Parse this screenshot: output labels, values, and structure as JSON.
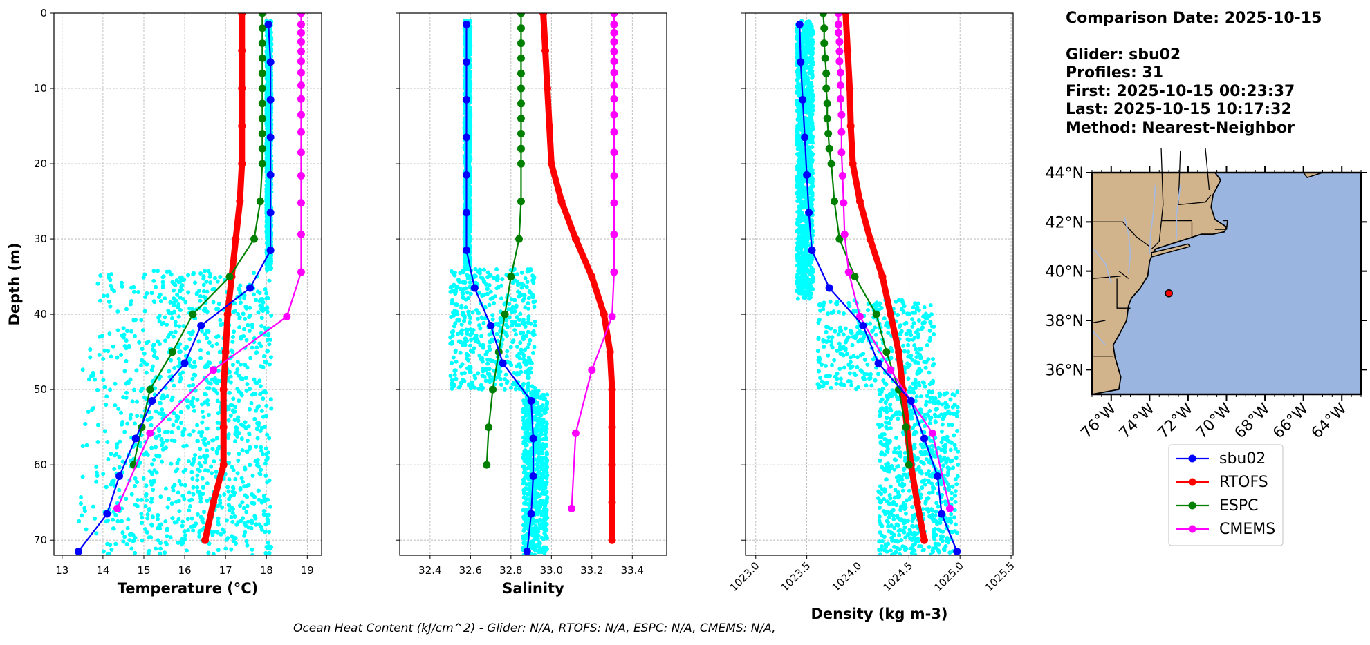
{
  "info": {
    "comparison_date": "Comparison Date: 2025-10-15",
    "glider": "Glider: sbu02",
    "profiles": "Profiles: 31",
    "first": "First: 2025-10-15 00:23:37",
    "last": "Last: 2025-10-15 10:17:32",
    "method": "Method: Nearest-Neighbor"
  },
  "footer": "Ocean Heat Content (kJ/cm^2) - Glider: N/A,  RTOFS: N/A,  ESPC: N/A,  CMEMS: N/A,",
  "colors": {
    "sbu02": "#0000ff",
    "RTOFS": "#ff0000",
    "ESPC": "#008000",
    "CMEMS": "#ff00ff",
    "raw": "#00ffff",
    "land": "#d2b48c",
    "ocean": "#9ab6e0"
  },
  "legend": [
    "sbu02",
    "RTOFS",
    "ESPC",
    "CMEMS"
  ],
  "chart_data": [
    {
      "type": "line",
      "xlabel": "Temperature (°C)",
      "ylabel": "Depth (m)",
      "xlim": [
        12.8,
        19.35
      ],
      "ylim": [
        72,
        0
      ],
      "xticks": [
        "13",
        "14",
        "15",
        "16",
        "17",
        "18",
        "19"
      ],
      "yticks": [
        "0",
        "10",
        "20",
        "30",
        "40",
        "50",
        "60",
        "70"
      ],
      "grid": true,
      "series": [
        {
          "name": "sbu02",
          "depth": [
            1.5,
            6.5,
            11.5,
            16.5,
            21.5,
            26.5,
            31.5,
            36.5,
            41.5,
            46.5,
            51.5,
            56.5,
            61.5,
            66.5,
            71.5
          ],
          "values": [
            18.05,
            18.1,
            18.1,
            18.1,
            18.1,
            18.1,
            18.1,
            17.6,
            16.4,
            16.0,
            15.2,
            14.8,
            14.4,
            14.1,
            13.4
          ]
        },
        {
          "name": "RTOFS",
          "depth": [
            0,
            5,
            10,
            15,
            20,
            25,
            30,
            35,
            40,
            45,
            50,
            55,
            60,
            65,
            70
          ],
          "values": [
            17.4,
            17.4,
            17.4,
            17.4,
            17.4,
            17.35,
            17.25,
            17.15,
            17.05,
            17.0,
            16.95,
            16.95,
            16.95,
            16.7,
            16.5
          ]
        },
        {
          "name": "ESPC",
          "depth": [
            0,
            2,
            4,
            6,
            8,
            10,
            12,
            14,
            16,
            18,
            20,
            25,
            30,
            35,
            40,
            45,
            50,
            55,
            60
          ],
          "values": [
            17.9,
            17.9,
            17.9,
            17.9,
            17.9,
            17.9,
            17.9,
            17.9,
            17.9,
            17.9,
            17.9,
            17.85,
            17.7,
            17.1,
            16.2,
            15.7,
            15.15,
            14.95,
            14.75
          ]
        },
        {
          "name": "CMEMS",
          "depth": [
            0,
            1.5,
            2.6,
            3.8,
            5.1,
            6.4,
            7.9,
            9.6,
            11.4,
            13.5,
            15.8,
            18.5,
            21.6,
            25.2,
            29.4,
            34.4,
            40.3,
            47.4,
            55.8,
            65.8
          ],
          "values": [
            18.85,
            18.85,
            18.85,
            18.85,
            18.85,
            18.85,
            18.85,
            18.85,
            18.85,
            18.85,
            18.85,
            18.85,
            18.85,
            18.85,
            18.85,
            18.85,
            18.5,
            16.7,
            15.15,
            14.35
          ]
        }
      ]
    },
    {
      "type": "line",
      "xlabel": "Salinity",
      "xlim": [
        32.25,
        33.57
      ],
      "ylim": [
        72,
        0
      ],
      "xticks": [
        "32.4",
        "32.6",
        "32.8",
        "33.0",
        "33.2",
        "33.4"
      ],
      "grid": true,
      "series": [
        {
          "name": "sbu02",
          "depth": [
            1.5,
            6.5,
            11.5,
            16.5,
            21.5,
            26.5,
            31.5,
            36.5,
            41.5,
            46.5,
            51.5,
            56.5,
            61.5,
            66.5,
            71.5
          ],
          "values": [
            32.58,
            32.58,
            32.58,
            32.58,
            32.58,
            32.58,
            32.58,
            32.62,
            32.7,
            32.76,
            32.9,
            32.91,
            32.91,
            32.9,
            32.88
          ]
        },
        {
          "name": "RTOFS",
          "depth": [
            0,
            5,
            10,
            15,
            20,
            25,
            30,
            35,
            40,
            45,
            50,
            55,
            60,
            65,
            70
          ],
          "values": [
            32.96,
            32.97,
            32.98,
            32.99,
            33.0,
            33.05,
            33.12,
            33.2,
            33.26,
            33.29,
            33.3,
            33.3,
            33.3,
            33.3,
            33.3
          ]
        },
        {
          "name": "ESPC",
          "depth": [
            0,
            2,
            4,
            6,
            8,
            10,
            12,
            14,
            16,
            18,
            20,
            25,
            30,
            35,
            40,
            45,
            50,
            55,
            60
          ],
          "values": [
            32.85,
            32.85,
            32.85,
            32.85,
            32.85,
            32.85,
            32.85,
            32.85,
            32.85,
            32.85,
            32.85,
            32.85,
            32.84,
            32.8,
            32.77,
            32.74,
            32.71,
            32.69,
            32.68
          ]
        },
        {
          "name": "CMEMS",
          "depth": [
            0,
            1.5,
            2.6,
            3.8,
            5.1,
            6.4,
            7.9,
            9.6,
            11.4,
            13.5,
            15.8,
            18.5,
            21.6,
            25.2,
            29.4,
            34.4,
            40.3,
            47.4,
            55.8,
            65.8
          ],
          "values": [
            33.31,
            33.31,
            33.31,
            33.31,
            33.31,
            33.31,
            33.31,
            33.31,
            33.31,
            33.31,
            33.31,
            33.31,
            33.31,
            33.31,
            33.31,
            33.31,
            33.3,
            33.2,
            33.12,
            33.1
          ]
        }
      ]
    },
    {
      "type": "line",
      "xlabel": "Density (kg m-3)",
      "xlim": [
        1022.9,
        1025.52
      ],
      "ylim": [
        72,
        0
      ],
      "xticks": [
        "1023.0",
        "1023.5",
        "1024.0",
        "1024.5",
        "1025.0",
        "1025.5"
      ],
      "grid": true,
      "series": [
        {
          "name": "sbu02",
          "depth": [
            1.5,
            6.5,
            11.5,
            16.5,
            21.5,
            26.5,
            31.5,
            36.5,
            41.5,
            46.5,
            51.5,
            56.5,
            61.5,
            66.5,
            71.5
          ],
          "values": [
            1023.43,
            1023.44,
            1023.46,
            1023.48,
            1023.5,
            1023.52,
            1023.55,
            1023.72,
            1024.05,
            1024.2,
            1024.52,
            1024.65,
            1024.78,
            1024.82,
            1024.97
          ]
        },
        {
          "name": "RTOFS",
          "depth": [
            0,
            5,
            10,
            15,
            20,
            25,
            30,
            35,
            40,
            45,
            50,
            55,
            60,
            65,
            70
          ],
          "values": [
            1023.88,
            1023.9,
            1023.92,
            1023.93,
            1023.95,
            1024.02,
            1024.12,
            1024.24,
            1024.32,
            1024.4,
            1024.44,
            1024.48,
            1024.52,
            1024.58,
            1024.65
          ]
        },
        {
          "name": "ESPC",
          "depth": [
            0,
            2,
            4,
            6,
            8,
            10,
            12,
            14,
            16,
            18,
            20,
            25,
            30,
            35,
            40,
            45,
            50,
            55,
            60
          ],
          "values": [
            1023.66,
            1023.67,
            1023.67,
            1023.68,
            1023.69,
            1023.69,
            1023.7,
            1023.7,
            1023.71,
            1023.72,
            1023.74,
            1023.77,
            1023.82,
            1023.97,
            1024.18,
            1024.28,
            1024.4,
            1024.47,
            1024.5
          ]
        },
        {
          "name": "CMEMS",
          "depth": [
            0,
            1.5,
            2.6,
            3.8,
            5.1,
            6.4,
            7.9,
            9.6,
            11.4,
            13.5,
            15.8,
            18.5,
            21.6,
            25.2,
            29.4,
            34.4,
            40.3,
            47.4,
            55.8,
            65.8
          ],
          "values": [
            1023.81,
            1023.81,
            1023.81,
            1023.82,
            1023.82,
            1023.82,
            1023.83,
            1023.83,
            1023.83,
            1023.84,
            1023.84,
            1023.84,
            1023.85,
            1023.86,
            1023.87,
            1023.91,
            1024.02,
            1024.32,
            1024.73,
            1024.9
          ]
        }
      ]
    }
  ],
  "map": {
    "lon_ticks": [
      "76°W",
      "74°W",
      "72°W",
      "70°W",
      "68°W",
      "66°W",
      "64°W"
    ],
    "lat_ticks": [
      "44°N",
      "42°N",
      "40°N",
      "38°N",
      "36°N"
    ],
    "lon_range": [
      -77,
      -63
    ],
    "lat_range": [
      35,
      44
    ],
    "glider_position": {
      "lon": -73.0,
      "lat": 39.1
    }
  }
}
